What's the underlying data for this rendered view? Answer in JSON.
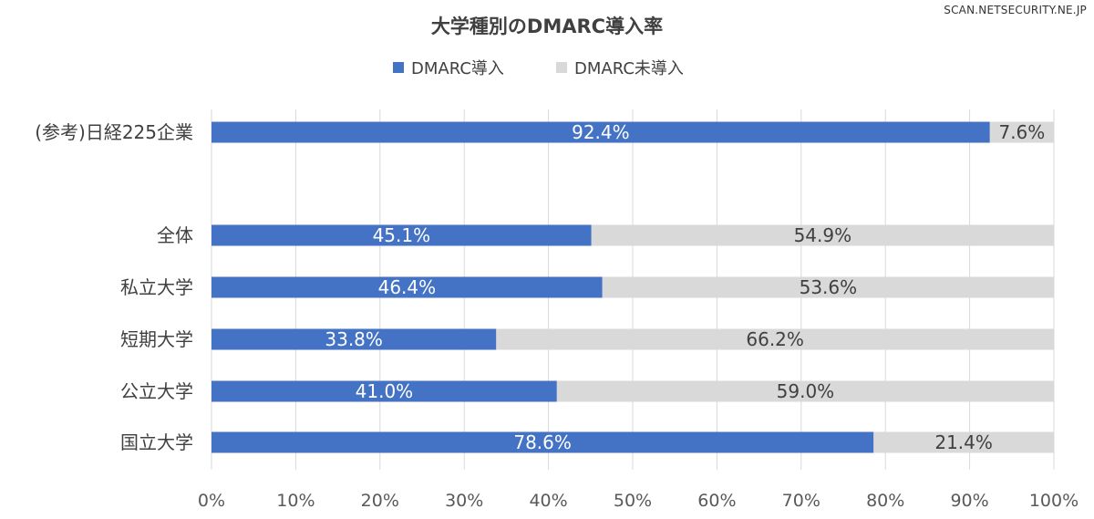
{
  "watermark": "SCAN.NETSECURITY.NE.JP",
  "chart_data": {
    "type": "bar",
    "orientation": "horizontal",
    "stacked": true,
    "title": "大学種別のDMARC導入率",
    "legend_position": "top",
    "categories": [
      "(参考)日経225企業",
      "",
      "全体",
      "私立大学",
      "短期大学",
      "公立大学",
      "国立大学"
    ],
    "series": [
      {
        "name": "DMARC導入",
        "color": "#4472C4",
        "label_color": "#ffffff",
        "values": [
          92.4,
          null,
          45.1,
          46.4,
          33.8,
          41.0,
          78.6
        ],
        "labels": [
          "92.4%",
          "",
          "45.1%",
          "46.4%",
          "33.8%",
          "41.0%",
          "78.6%"
        ]
      },
      {
        "name": "DMARC未導入",
        "color": "#D9D9D9",
        "label_color": "#404040",
        "values": [
          7.6,
          null,
          54.9,
          53.6,
          66.2,
          59.0,
          21.4
        ],
        "labels": [
          "7.6%",
          "",
          "54.9%",
          "53.6%",
          "66.2%",
          "59.0%",
          "21.4%"
        ]
      }
    ],
    "xlim": [
      0,
      100
    ],
    "xticks": [
      0,
      10,
      20,
      30,
      40,
      50,
      60,
      70,
      80,
      90,
      100
    ],
    "xtick_labels": [
      "0%",
      "10%",
      "20%",
      "30%",
      "40%",
      "50%",
      "60%",
      "70%",
      "80%",
      "90%",
      "100%"
    ],
    "grid": "vertical"
  }
}
